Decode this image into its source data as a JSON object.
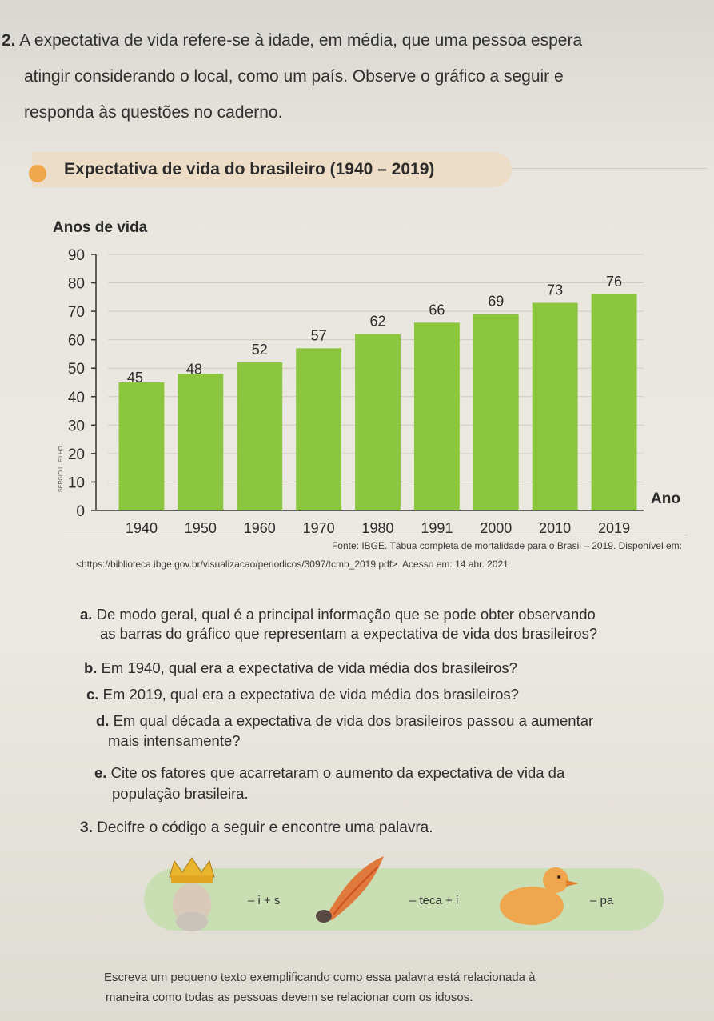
{
  "question2": {
    "number": "2.",
    "line1": "A expectativa de vida refere-se à idade, em média, que uma pessoa espera",
    "line2": "atingir considerando o local, como um país. Observe o gráfico a seguir e",
    "line3": "responda às questões no caderno."
  },
  "chart_data": {
    "type": "bar",
    "title": "Expectativa de vida do brasileiro (1940 – 2019)",
    "ylabel": "Anos de vida",
    "xlabel": "Ano",
    "categories": [
      "1940",
      "1950",
      "1960",
      "1970",
      "1980",
      "1991",
      "2000",
      "2010",
      "2019"
    ],
    "values": [
      45,
      48,
      52,
      57,
      62,
      66,
      69,
      73,
      76
    ],
    "ylim": [
      0,
      90
    ],
    "yticks": [
      "0",
      "10",
      "20",
      "30",
      "40",
      "50",
      "60",
      "70",
      "80",
      "90"
    ],
    "bar_color": "#8cc63f",
    "grid": true,
    "credit": "SERGIO L. FILHO"
  },
  "source": {
    "line1": "Fonte: IBGE. Tábua completa de mortalidade para o Brasil – 2019. Disponível em:",
    "line2": "<https://biblioteca.ibge.gov.br/visualizacao/periodicos/3097/tcmb_2019.pdf>. Acesso em: 14 abr. 2021"
  },
  "items": {
    "a_letter": "a.",
    "a_line1": "De modo geral, qual é a principal informação que se pode obter observando",
    "a_line2": "as barras do gráfico que representam a expectativa de vida dos brasileiros?",
    "b_letter": "b.",
    "b_line1": "Em 1940, qual era a expectativa de vida média dos brasileiros?",
    "c_letter": "c.",
    "c_line1": "Em 2019, qual era a expectativa de vida média dos brasileiros?",
    "d_letter": "d.",
    "d_line1": "Em qual década a expectativa de vida dos brasileiros passou a aumentar",
    "d_line2": "mais intensamente?",
    "e_letter": "e.",
    "e_line1": "Cite os fatores que acarretaram o aumento da expectativa de vida da",
    "e_line2": "população brasileira."
  },
  "question3": {
    "number": "3.",
    "text": "Decifre o código a seguir e encontre uma palavra.",
    "code1": "– i + s",
    "code2": "– teca + i",
    "code3": "– pa",
    "footer1": "Escreva um pequeno texto exemplificando como essa palavra está relacionada à",
    "footer2": "maneira como todas as pessoas devem se relacionar com os idosos."
  }
}
